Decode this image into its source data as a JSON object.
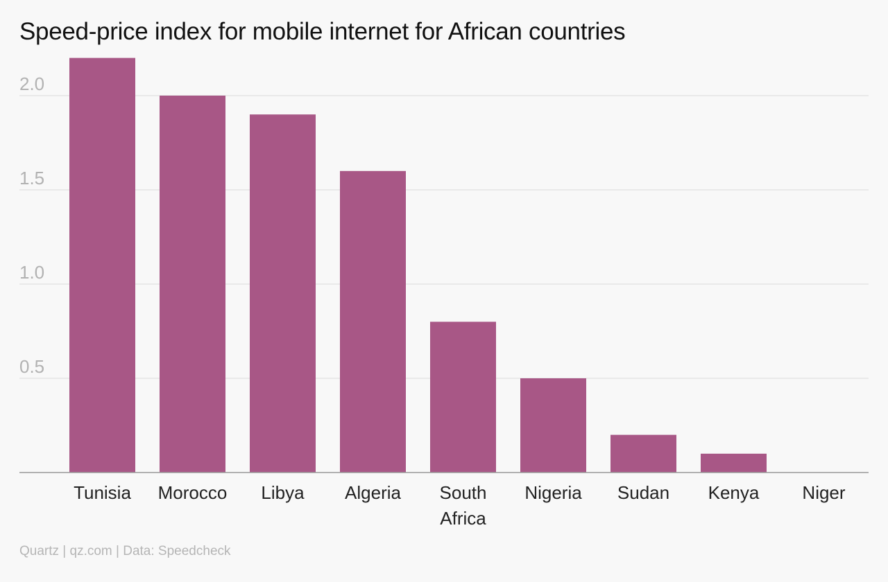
{
  "chart_data": {
    "type": "bar",
    "title": "Speed-price index for mobile internet for African countries",
    "categories": [
      "Tunisia",
      "Morocco",
      "Libya",
      "Algeria",
      "South Africa",
      "Nigeria",
      "Sudan",
      "Kenya",
      "Niger"
    ],
    "values": [
      2.2,
      2.0,
      1.9,
      1.6,
      0.8,
      0.5,
      0.2,
      0.1,
      0.0
    ],
    "yticks": [
      "0.5",
      "1.0",
      "1.5",
      "2.0"
    ],
    "ylim": [
      0,
      2.2
    ],
    "xlabel": "",
    "ylabel": "",
    "grid": true,
    "colors": {
      "bar": "#a85786",
      "grid": "#e4e4e4",
      "axis": "#999999"
    }
  },
  "footer": {
    "source": "Quartz | qz.com | Data: Speedcheck"
  }
}
